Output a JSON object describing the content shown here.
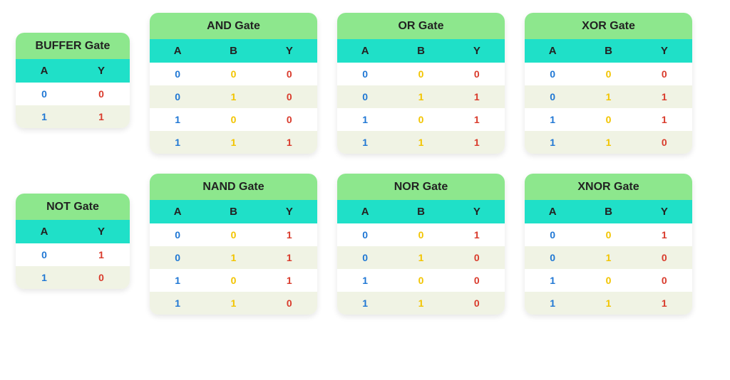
{
  "colors": {
    "title_bg": "#8de78d",
    "header_bg": "#1fe0c8",
    "row_even_bg": "#ffffff",
    "row_odd_bg": "#f0f3e4",
    "col_A": "#1f77d4",
    "col_B": "#f2c400",
    "col_Y": "#d93a2b",
    "text": "#222222"
  },
  "tables": [
    {
      "id": "buffer",
      "title": "BUFFER Gate",
      "size": "small",
      "columns": [
        "A",
        "Y"
      ],
      "rows": [
        [
          "0",
          "0"
        ],
        [
          "1",
          "1"
        ]
      ]
    },
    {
      "id": "and",
      "title": "AND Gate",
      "size": "big",
      "columns": [
        "A",
        "B",
        "Y"
      ],
      "rows": [
        [
          "0",
          "0",
          "0"
        ],
        [
          "0",
          "1",
          "0"
        ],
        [
          "1",
          "0",
          "0"
        ],
        [
          "1",
          "1",
          "1"
        ]
      ]
    },
    {
      "id": "or",
      "title": "OR Gate",
      "size": "big",
      "columns": [
        "A",
        "B",
        "Y"
      ],
      "rows": [
        [
          "0",
          "0",
          "0"
        ],
        [
          "0",
          "1",
          "1"
        ],
        [
          "1",
          "0",
          "1"
        ],
        [
          "1",
          "1",
          "1"
        ]
      ]
    },
    {
      "id": "xor",
      "title": "XOR Gate",
      "size": "big",
      "columns": [
        "A",
        "B",
        "Y"
      ],
      "rows": [
        [
          "0",
          "0",
          "0"
        ],
        [
          "0",
          "1",
          "1"
        ],
        [
          "1",
          "0",
          "1"
        ],
        [
          "1",
          "1",
          "0"
        ]
      ]
    },
    {
      "id": "not",
      "title": "NOT Gate",
      "size": "small",
      "columns": [
        "A",
        "Y"
      ],
      "rows": [
        [
          "0",
          "1"
        ],
        [
          "1",
          "0"
        ]
      ]
    },
    {
      "id": "nand",
      "title": "NAND Gate",
      "size": "big",
      "columns": [
        "A",
        "B",
        "Y"
      ],
      "rows": [
        [
          "0",
          "0",
          "1"
        ],
        [
          "0",
          "1",
          "1"
        ],
        [
          "1",
          "0",
          "1"
        ],
        [
          "1",
          "1",
          "0"
        ]
      ]
    },
    {
      "id": "nor",
      "title": "NOR Gate",
      "size": "big",
      "columns": [
        "A",
        "B",
        "Y"
      ],
      "rows": [
        [
          "0",
          "0",
          "1"
        ],
        [
          "0",
          "1",
          "0"
        ],
        [
          "1",
          "0",
          "0"
        ],
        [
          "1",
          "1",
          "0"
        ]
      ]
    },
    {
      "id": "xnor",
      "title": "XNOR Gate",
      "size": "big",
      "columns": [
        "A",
        "B",
        "Y"
      ],
      "rows": [
        [
          "0",
          "0",
          "1"
        ],
        [
          "0",
          "1",
          "0"
        ],
        [
          "1",
          "0",
          "0"
        ],
        [
          "1",
          "1",
          "1"
        ]
      ]
    }
  ],
  "layout": {
    "row1": [
      "buffer",
      "and",
      "or",
      "xor"
    ],
    "row2": [
      "not",
      "nand",
      "nor",
      "xnor"
    ]
  }
}
